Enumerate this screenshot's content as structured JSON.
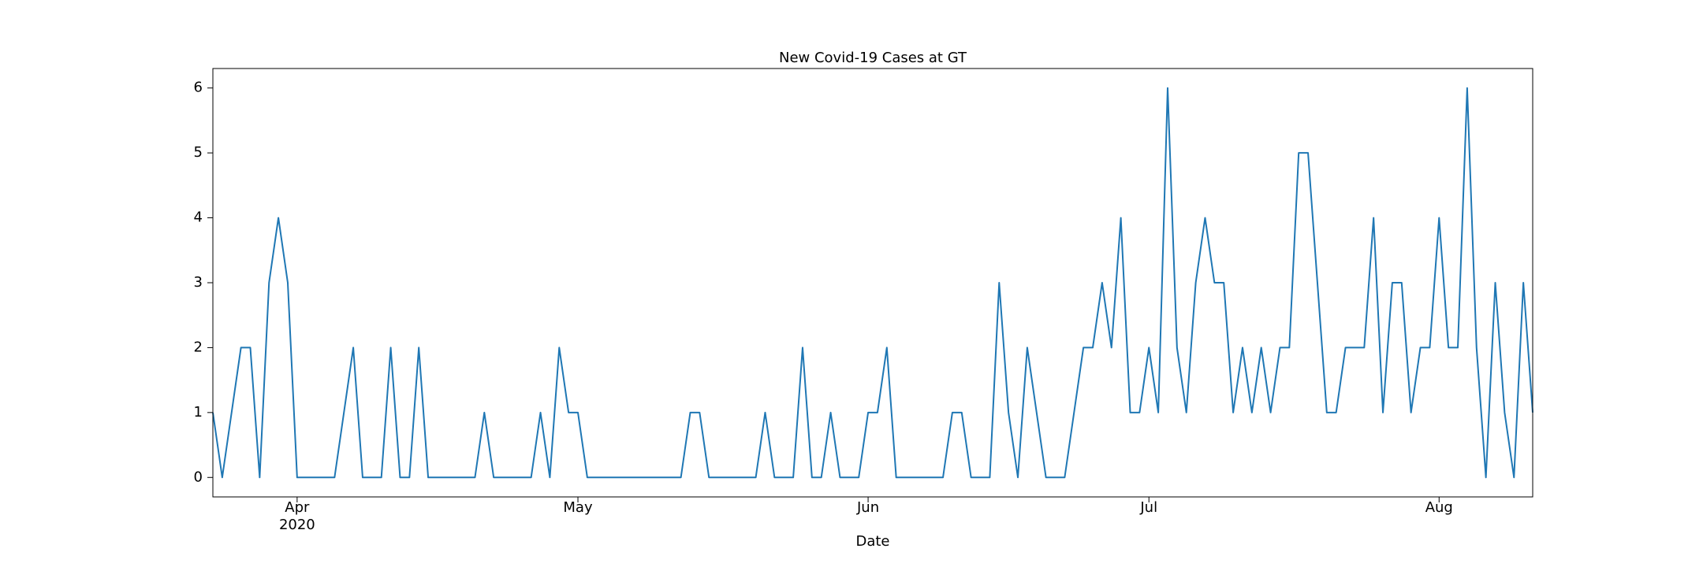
{
  "chart_data": {
    "type": "line",
    "title": "New Covid-19 Cases at GT",
    "xlabel": "Date",
    "x": [
      "2020-03-23",
      "2020-03-24",
      "2020-03-25",
      "2020-03-26",
      "2020-03-27",
      "2020-03-28",
      "2020-03-29",
      "2020-03-30",
      "2020-03-31",
      "2020-04-01",
      "2020-04-02",
      "2020-04-03",
      "2020-04-04",
      "2020-04-05",
      "2020-04-06",
      "2020-04-07",
      "2020-04-08",
      "2020-04-09",
      "2020-04-10",
      "2020-04-11",
      "2020-04-12",
      "2020-04-13",
      "2020-04-14",
      "2020-04-15",
      "2020-04-16",
      "2020-04-17",
      "2020-04-18",
      "2020-04-19",
      "2020-04-20",
      "2020-04-21",
      "2020-04-22",
      "2020-04-23",
      "2020-04-24",
      "2020-04-25",
      "2020-04-26",
      "2020-04-27",
      "2020-04-28",
      "2020-04-29",
      "2020-04-30",
      "2020-05-01",
      "2020-05-02",
      "2020-05-03",
      "2020-05-04",
      "2020-05-05",
      "2020-05-06",
      "2020-05-07",
      "2020-05-08",
      "2020-05-09",
      "2020-05-10",
      "2020-05-11",
      "2020-05-12",
      "2020-05-13",
      "2020-05-14",
      "2020-05-15",
      "2020-05-16",
      "2020-05-17",
      "2020-05-18",
      "2020-05-19",
      "2020-05-20",
      "2020-05-21",
      "2020-05-22",
      "2020-05-23",
      "2020-05-24",
      "2020-05-25",
      "2020-05-26",
      "2020-05-27",
      "2020-05-28",
      "2020-05-29",
      "2020-05-30",
      "2020-05-31",
      "2020-06-01",
      "2020-06-02",
      "2020-06-03",
      "2020-06-04",
      "2020-06-05",
      "2020-06-06",
      "2020-06-07",
      "2020-06-08",
      "2020-06-09",
      "2020-06-10",
      "2020-06-11",
      "2020-06-12",
      "2020-06-13",
      "2020-06-14",
      "2020-06-15",
      "2020-06-16",
      "2020-06-17",
      "2020-06-18",
      "2020-06-19",
      "2020-06-20",
      "2020-06-21",
      "2020-06-22",
      "2020-06-23",
      "2020-06-24",
      "2020-06-25",
      "2020-06-26",
      "2020-06-27",
      "2020-06-28",
      "2020-06-29",
      "2020-06-30",
      "2020-07-01",
      "2020-07-02",
      "2020-07-03",
      "2020-07-04",
      "2020-07-05",
      "2020-07-06",
      "2020-07-07",
      "2020-07-08",
      "2020-07-09",
      "2020-07-10",
      "2020-07-11",
      "2020-07-12",
      "2020-07-13",
      "2020-07-14",
      "2020-07-15",
      "2020-07-16",
      "2020-07-17",
      "2020-07-18",
      "2020-07-19",
      "2020-07-20",
      "2020-07-21",
      "2020-07-22",
      "2020-07-23",
      "2020-07-24",
      "2020-07-25",
      "2020-07-26",
      "2020-07-27",
      "2020-07-28",
      "2020-07-29",
      "2020-07-30",
      "2020-07-31",
      "2020-08-01",
      "2020-08-02",
      "2020-08-03",
      "2020-08-04",
      "2020-08-05",
      "2020-08-06",
      "2020-08-07",
      "2020-08-08",
      "2020-08-09",
      "2020-08-10",
      "2020-08-11"
    ],
    "series": [
      {
        "color": "#1f77b4",
        "values": [
          1,
          0,
          1,
          2,
          2,
          0,
          3,
          4,
          3,
          0,
          0,
          0,
          0,
          0,
          1,
          2,
          0,
          0,
          0,
          2,
          0,
          0,
          2,
          0,
          0,
          0,
          0,
          0,
          0,
          1,
          0,
          0,
          0,
          0,
          0,
          1,
          0,
          2,
          1,
          1,
          0,
          0,
          0,
          0,
          0,
          0,
          0,
          0,
          0,
          0,
          0,
          1,
          1,
          0,
          0,
          0,
          0,
          0,
          0,
          1,
          0,
          0,
          0,
          2,
          0,
          0,
          1,
          0,
          0,
          0,
          1,
          1,
          2,
          0,
          0,
          0,
          0,
          0,
          0,
          1,
          1,
          0,
          0,
          0,
          3,
          1,
          0,
          2,
          1,
          0,
          0,
          0,
          1,
          2,
          2,
          3,
          2,
          4,
          1,
          1,
          2,
          1,
          6,
          2,
          1,
          3,
          4,
          3,
          3,
          1,
          2,
          1,
          2,
          1,
          2,
          2,
          5,
          5,
          3,
          1,
          1,
          2,
          2,
          2,
          4,
          1,
          3,
          3,
          1,
          2,
          2,
          4,
          2,
          2,
          6,
          2,
          0,
          3,
          1,
          0,
          3,
          1
        ]
      }
    ],
    "xlim": [
      "2020-03-23",
      "2020-08-11"
    ],
    "xticks": [
      {
        "value": "2020-04-01",
        "label": "Apr\n2020"
      },
      {
        "value": "2020-05-01",
        "label": "May"
      },
      {
        "value": "2020-06-01",
        "label": "Jun"
      },
      {
        "value": "2020-07-01",
        "label": "Jul"
      },
      {
        "value": "2020-08-01",
        "label": "Aug"
      }
    ],
    "ylim": [
      -0.3,
      6.3
    ],
    "yticks": [
      0,
      1,
      2,
      3,
      4,
      5,
      6
    ],
    "grid": false
  }
}
